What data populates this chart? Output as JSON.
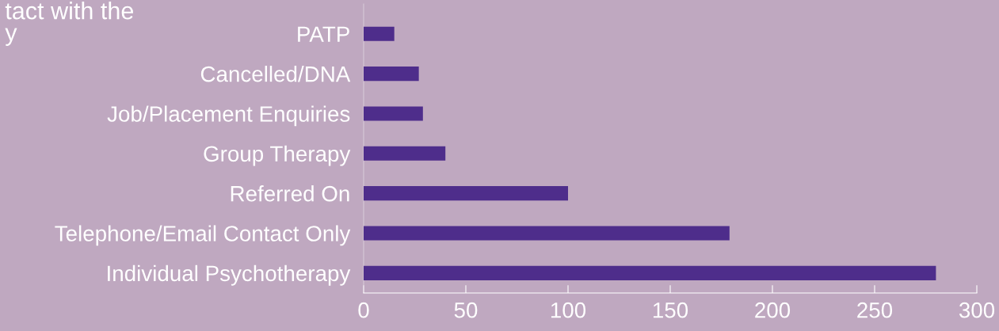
{
  "chart_data": {
    "type": "bar",
    "orientation": "horizontal",
    "categories": [
      "PATP",
      "Cancelled/DNA",
      "Job/Placement Enquiries",
      "Group Therapy",
      "Referred On",
      "Telephone/Email Contact Only",
      "Individual Psychotherapy"
    ],
    "values": [
      15,
      27,
      29,
      40,
      100,
      179,
      280
    ],
    "color": "#4e2d8b",
    "xlim": [
      0,
      300
    ],
    "xticks": [
      0,
      50,
      100,
      150,
      200,
      250,
      300
    ],
    "grid": false,
    "legend": false,
    "annotations": [
      "tact with the\ny"
    ]
  }
}
